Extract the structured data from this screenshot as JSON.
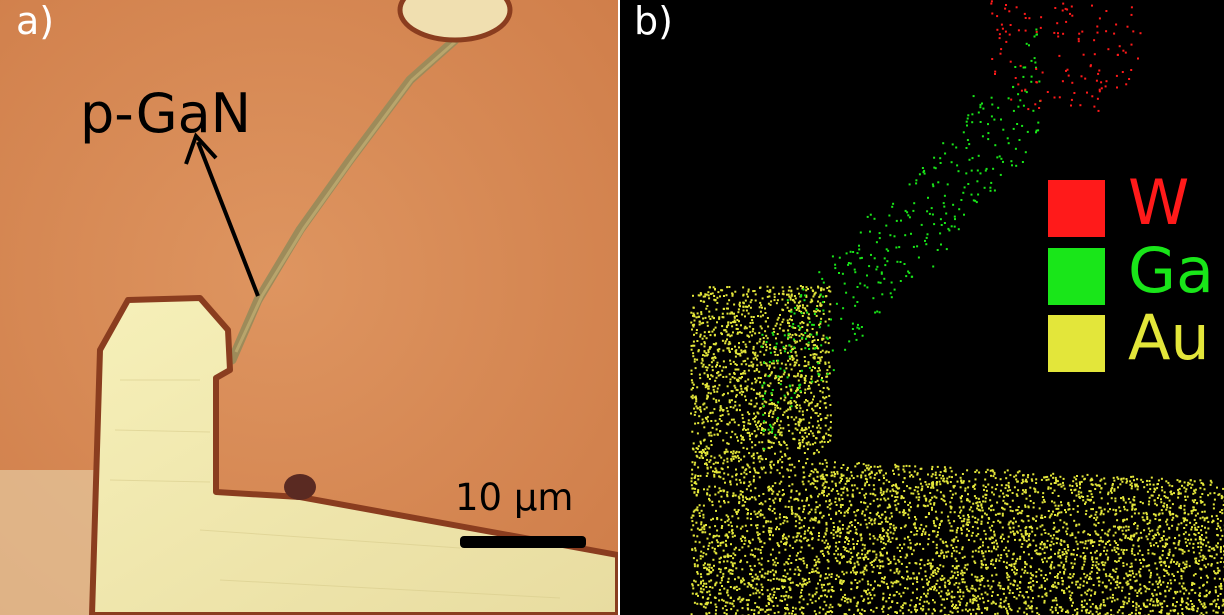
{
  "panel_a": {
    "label": "a)",
    "annotation": "p-GaN",
    "scale_bar": "10 µm"
  },
  "panel_b": {
    "label": "b)",
    "legend": [
      {
        "label": "W",
        "color": "#ff1a1a"
      },
      {
        "label": "Ga",
        "color": "#19e619"
      },
      {
        "label": "Au",
        "color": "#e3e63a"
      }
    ]
  },
  "colors": {
    "substrate": "#d88a55",
    "metal": "#f0e7a5",
    "metal_edge": "#8a3d1f",
    "map_bg": "#000000",
    "arrow": "#000000"
  }
}
